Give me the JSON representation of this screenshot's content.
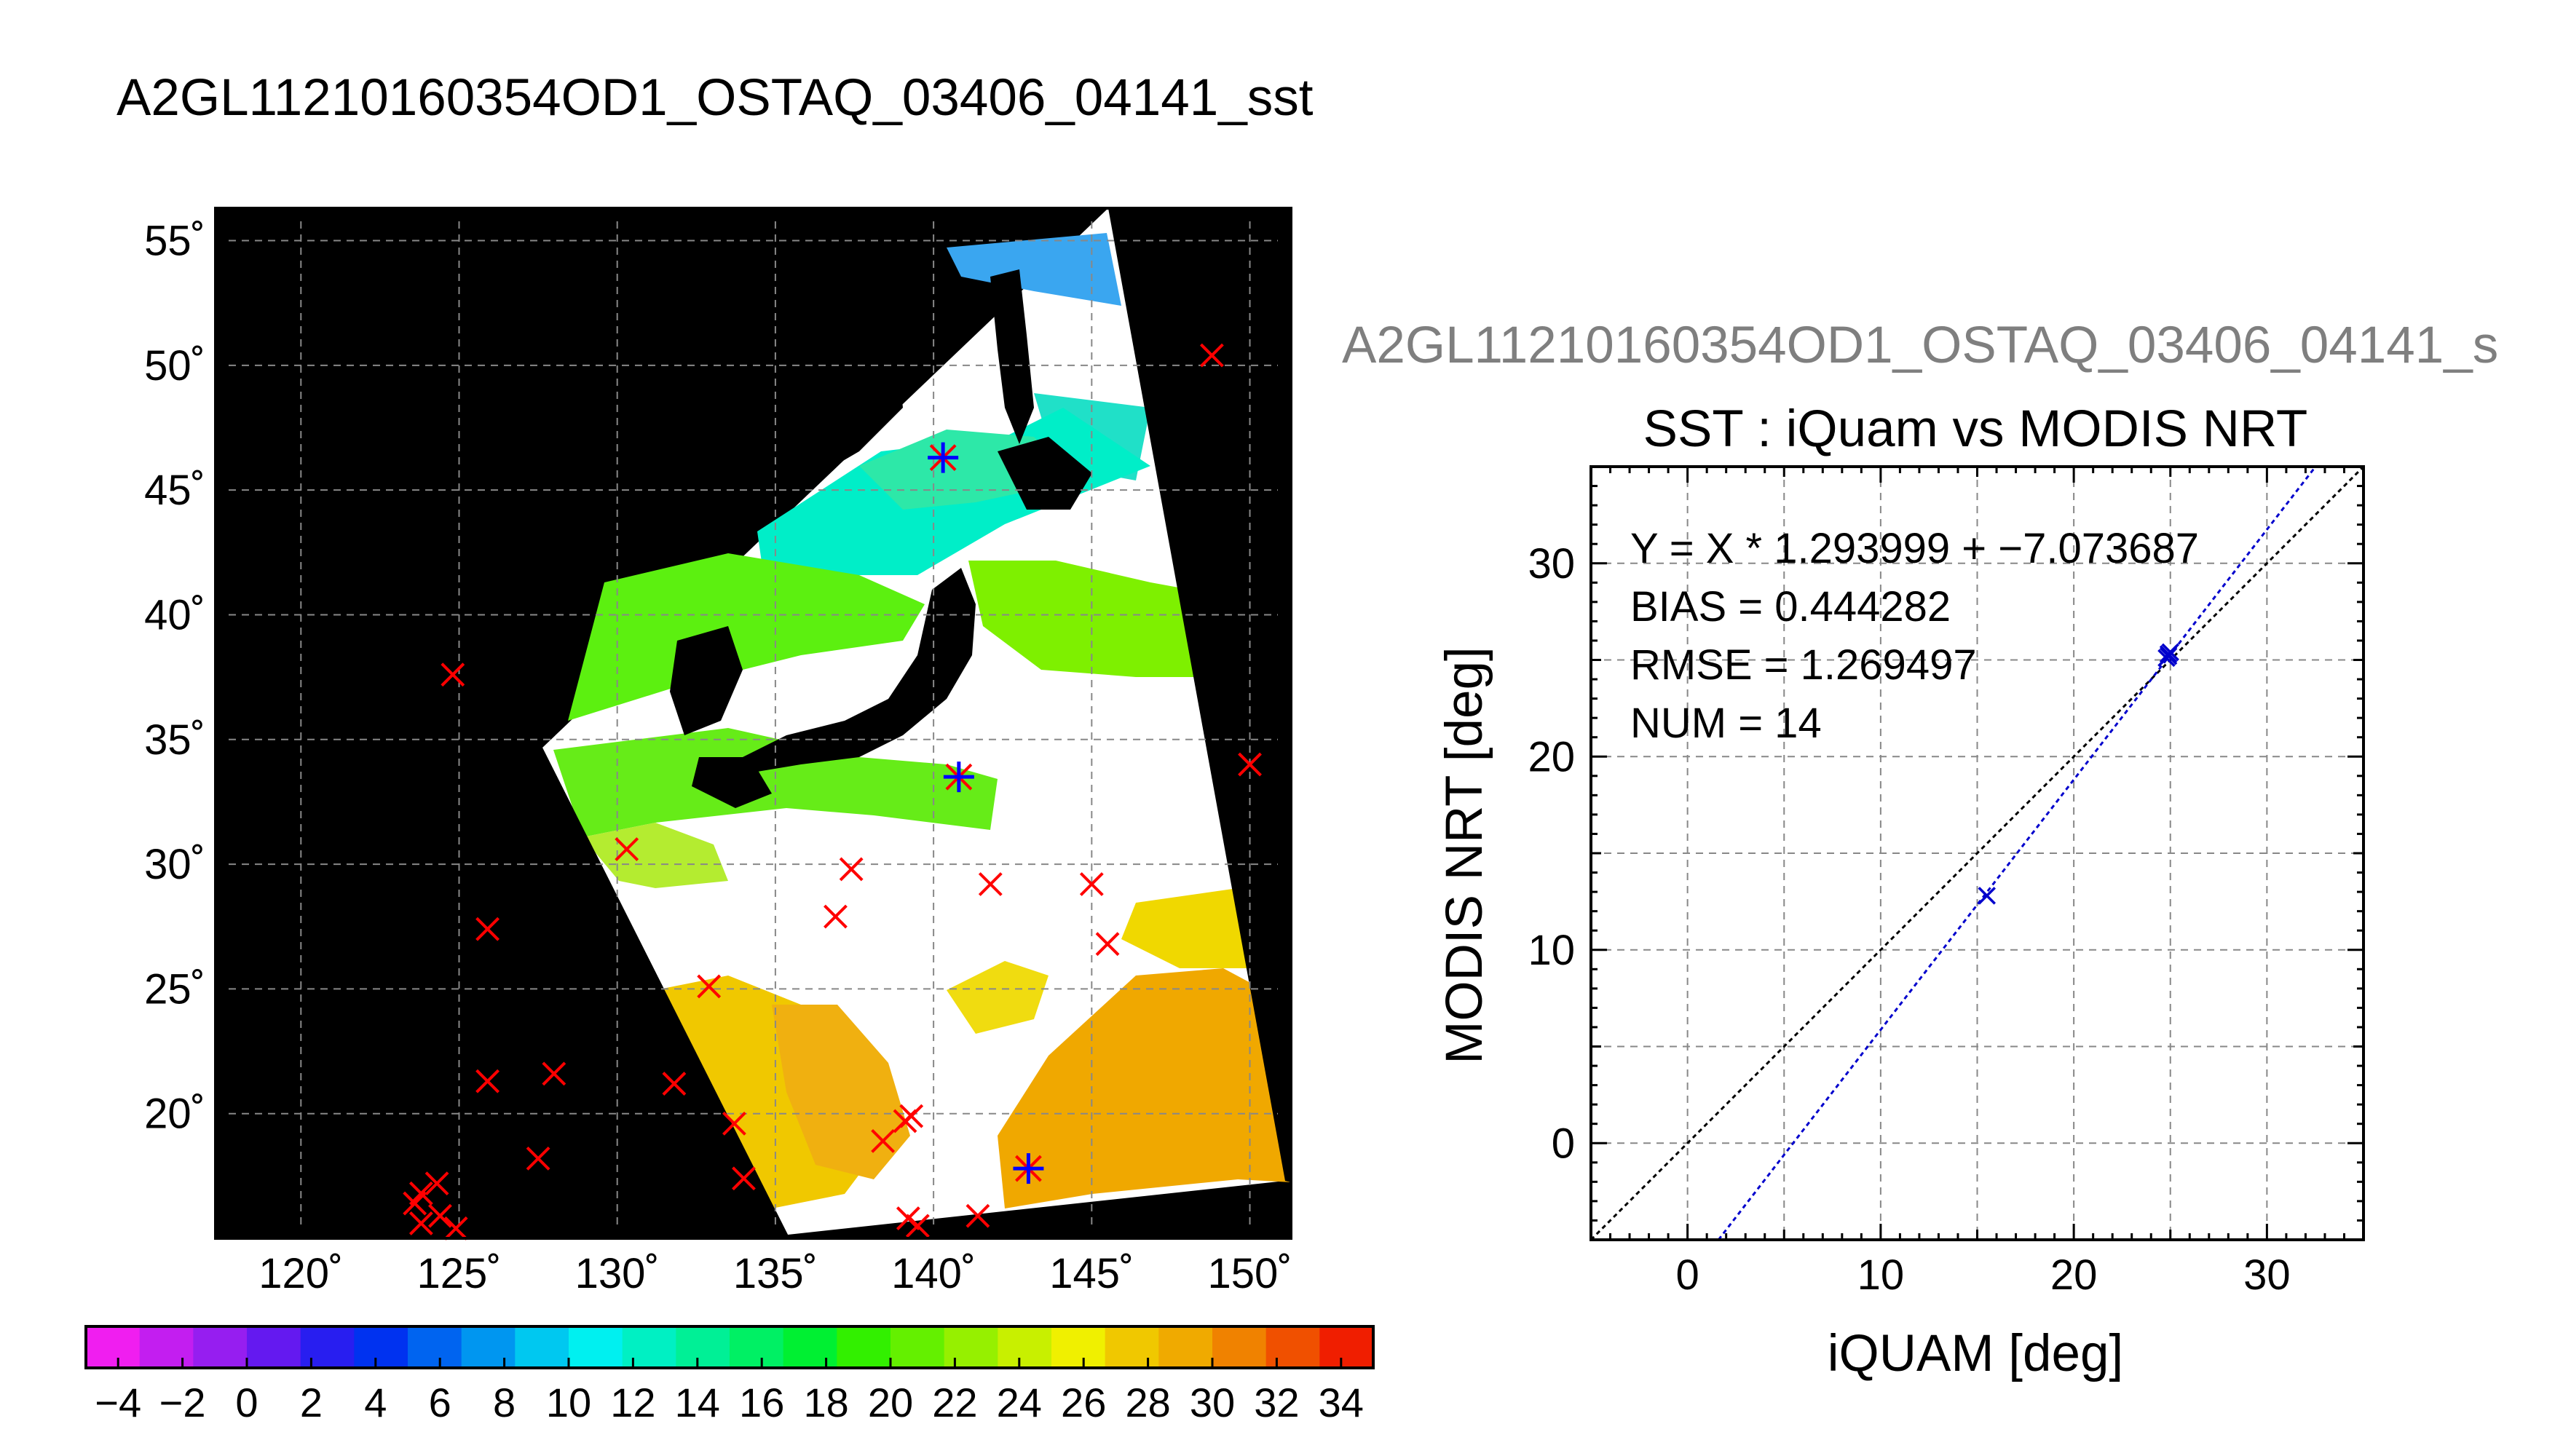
{
  "main_title": "A2GL11210160354OD1_OSTAQ_03406_04141_sst",
  "chart_data": [
    {
      "type": "heatmap",
      "description_key": "sst_map",
      "lon_ticks": [
        120,
        125,
        130,
        135,
        140,
        145,
        150
      ],
      "lat_ticks": [
        20,
        25,
        30,
        35,
        40,
        45,
        50,
        55
      ],
      "lon_labels": [
        "120˚",
        "125˚",
        "130˚",
        "135˚",
        "140˚",
        "145˚",
        "150˚"
      ],
      "lat_labels": [
        "20˚",
        "25˚",
        "30˚",
        "35˚",
        "40˚",
        "45˚",
        "50˚",
        "55˚"
      ],
      "xlim": [
        117.3,
        151.3
      ],
      "ylim": [
        15.0,
        56.3
      ],
      "grid": true,
      "red_markers": [
        {
          "lon": 148.8,
          "lat": 50.4
        },
        {
          "lon": 124.8,
          "lat": 37.6
        },
        {
          "lon": 150.0,
          "lat": 34.0
        },
        {
          "lon": 130.3,
          "lat": 30.6
        },
        {
          "lon": 137.4,
          "lat": 29.8
        },
        {
          "lon": 141.8,
          "lat": 29.2
        },
        {
          "lon": 145.0,
          "lat": 29.2
        },
        {
          "lon": 136.9,
          "lat": 27.9
        },
        {
          "lon": 125.9,
          "lat": 27.4
        },
        {
          "lon": 145.5,
          "lat": 26.8
        },
        {
          "lon": 132.9,
          "lat": 25.1
        },
        {
          "lon": 125.9,
          "lat": 21.3
        },
        {
          "lon": 128.0,
          "lat": 21.6
        },
        {
          "lon": 131.8,
          "lat": 21.2
        },
        {
          "lon": 133.7,
          "lat": 19.6
        },
        {
          "lon": 139.3,
          "lat": 19.9
        },
        {
          "lon": 139.1,
          "lat": 19.7
        },
        {
          "lon": 138.4,
          "lat": 18.9
        },
        {
          "lon": 127.5,
          "lat": 18.2
        },
        {
          "lon": 134.0,
          "lat": 17.4
        },
        {
          "lon": 123.8,
          "lat": 16.8
        },
        {
          "lon": 124.3,
          "lat": 17.2
        },
        {
          "lon": 123.6,
          "lat": 16.4
        },
        {
          "lon": 124.4,
          "lat": 15.9
        },
        {
          "lon": 123.8,
          "lat": 15.6
        },
        {
          "lon": 124.9,
          "lat": 15.4
        },
        {
          "lon": 139.2,
          "lat": 15.8
        },
        {
          "lon": 139.5,
          "lat": 15.5
        },
        {
          "lon": 141.4,
          "lat": 15.9
        }
      ],
      "blue_markers": [
        {
          "lon": 140.3,
          "lat": 46.3
        },
        {
          "lon": 140.8,
          "lat": 33.5
        },
        {
          "lon": 143.0,
          "lat": 17.8
        }
      ],
      "colorbar": {
        "min": -5,
        "max": 35,
        "step": 2,
        "tick_values": [
          -4,
          -2,
          0,
          2,
          4,
          6,
          8,
          10,
          12,
          14,
          16,
          18,
          20,
          22,
          24,
          26,
          28,
          30,
          32,
          34
        ],
        "tick_labels": [
          "−4",
          "−2",
          "0",
          "2",
          "4",
          "6",
          "8",
          "10",
          "12",
          "14",
          "16",
          "18",
          "20",
          "22",
          "24",
          "26",
          "28",
          "30",
          "32",
          "34"
        ],
        "colors": [
          "#f01ef0",
          "#c31ef0",
          "#961ef0",
          "#6419f0",
          "#281ef0",
          "#0032f0",
          "#0064f0",
          "#0096f0",
          "#00c8f0",
          "#00f0f0",
          "#00f0c3",
          "#00f096",
          "#00f064",
          "#00f032",
          "#32f000",
          "#64f000",
          "#96f000",
          "#c8f000",
          "#f0f000",
          "#f0c800",
          "#f0aa00",
          "#f08200",
          "#f05000",
          "#f01e00"
        ]
      }
    },
    {
      "type": "scatter",
      "description_key": "validation_scatter",
      "subtitle": "A2GL11210160354OD1_OSTAQ_03406_04141_s",
      "title": "SST : iQuam vs MODIS NRT",
      "xlabel": "iQUAM [deg]",
      "ylabel": "MODIS NRT [deg]",
      "xlim": [
        -5,
        35
      ],
      "ylim": [
        -5,
        35
      ],
      "x_ticks": [
        0,
        10,
        20,
        30
      ],
      "y_ticks": [
        0,
        10,
        20,
        30
      ],
      "grid": true,
      "stats": [
        "Y = X * 1.293999 + −7.073687",
        "BIAS = 0.444282",
        "RMSE = 1.269497",
        "NUM = 14"
      ],
      "fit": {
        "slope": 1.293999,
        "intercept": -7.073687
      },
      "points": [
        {
          "x": 15.5,
          "y": 12.8
        },
        {
          "x": 24.9,
          "y": 25.3
        },
        {
          "x": 24.8,
          "y": 25.1
        },
        {
          "x": 25.0,
          "y": 25.4
        },
        {
          "x": 24.9,
          "y": 25.2
        }
      ],
      "fit_color": "#0000cc",
      "identity_color": "#000000"
    }
  ]
}
